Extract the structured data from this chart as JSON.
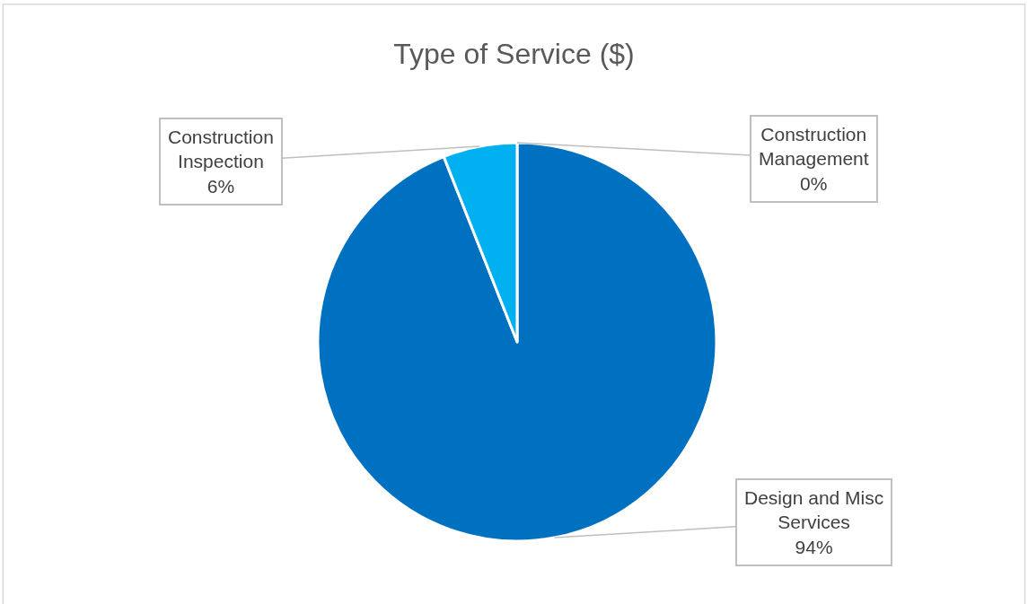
{
  "chart_data": {
    "type": "pie",
    "title": "Type of Service ($)",
    "categories": [
      "Construction Management",
      "Design and Misc Services",
      "Construction Inspection"
    ],
    "values": [
      0,
      94,
      6
    ],
    "colors": [
      "#a5a5a5",
      "#0070c0",
      "#00b0f0"
    ],
    "value_labels": [
      "0%",
      "94%",
      "6%"
    ],
    "legend": false
  }
}
